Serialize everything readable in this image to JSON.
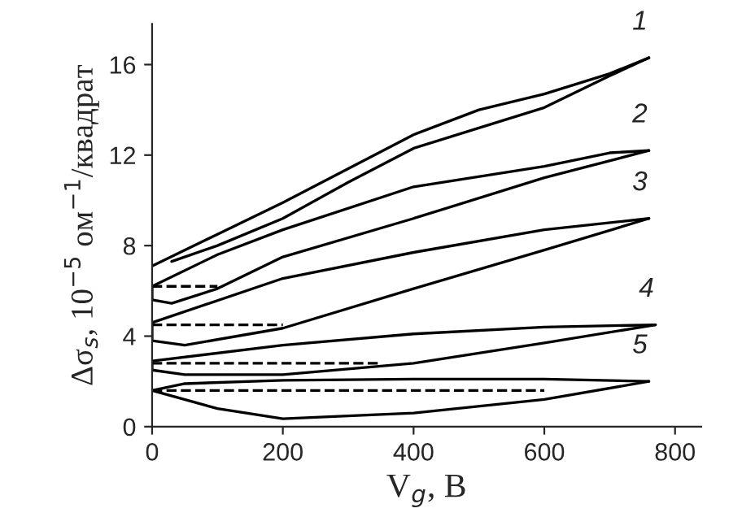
{
  "chart_data": {
    "type": "line",
    "xlabel": "V$_{g}$, В",
    "ylabel": "Δσ$_{s}$, 10$^{−5}$ ом$^{−1}$/квадрат",
    "xlim": [
      0,
      840
    ],
    "ylim": [
      0,
      17.8
    ],
    "xticks": [
      0,
      200,
      400,
      600,
      800
    ],
    "yticks": [
      0,
      4,
      8,
      12,
      16
    ],
    "grid": false,
    "legend": false,
    "marker": "none",
    "series": [
      {
        "color": "#000000",
        "line_style": "dashed",
        "x": [
          0,
          100
        ],
        "values": [
          6.2,
          6.2
        ]
      },
      {
        "color": "#000000",
        "line_style": "dashed",
        "x": [
          0,
          200
        ],
        "values": [
          4.5,
          4.5
        ]
      },
      {
        "color": "#000000",
        "line_style": "dashed",
        "x": [
          0,
          350
        ],
        "values": [
          2.8,
          2.8
        ]
      },
      {
        "color": "#000000",
        "line_style": "dashed",
        "x": [
          0,
          600
        ],
        "values": [
          1.6,
          1.6
        ]
      },
      {
        "name": "1",
        "color": "#000000",
        "line_style": "solid",
        "x": [
          0,
          100,
          200,
          300,
          400,
          500,
          600,
          700,
          760
        ],
        "values": [
          7.1,
          8.5,
          9.9,
          11.4,
          12.9,
          14.0,
          14.7,
          15.6,
          16.3
        ]
      },
      {
        "color": "#000000",
        "line_style": "solid",
        "x": [
          30,
          100,
          200,
          300,
          400,
          500,
          600,
          700,
          760
        ],
        "values": [
          7.3,
          8.0,
          9.2,
          10.8,
          12.3,
          13.2,
          14.1,
          15.5,
          16.3
        ]
      },
      {
        "name": "2",
        "color": "#000000",
        "line_style": "solid",
        "x": [
          0,
          100,
          200,
          400,
          600,
          700,
          760
        ],
        "values": [
          6.2,
          7.6,
          8.7,
          10.6,
          11.5,
          12.1,
          12.2
        ]
      },
      {
        "color": "#000000",
        "line_style": "solid",
        "x": [
          0,
          0,
          30,
          100,
          200,
          400,
          600,
          760
        ],
        "values": [
          6.2,
          5.6,
          5.45,
          6.1,
          7.5,
          9.2,
          11.0,
          12.2
        ]
      },
      {
        "name": "3",
        "color": "#000000",
        "line_style": "solid",
        "x": [
          0,
          200,
          400,
          600,
          760
        ],
        "values": [
          4.6,
          6.55,
          7.7,
          8.7,
          9.2
        ]
      },
      {
        "color": "#000000",
        "line_style": "solid",
        "x": [
          0,
          0,
          50,
          200,
          400,
          600,
          760
        ],
        "values": [
          4.6,
          3.8,
          3.6,
          4.35,
          6.1,
          7.8,
          9.2
        ]
      },
      {
        "name": "4",
        "color": "#000000",
        "line_style": "solid",
        "x": [
          0,
          200,
          400,
          600,
          770
        ],
        "values": [
          2.9,
          3.6,
          4.1,
          4.4,
          4.5
        ]
      },
      {
        "color": "#000000",
        "line_style": "solid",
        "x": [
          0,
          0,
          50,
          200,
          400,
          600,
          770
        ],
        "values": [
          2.9,
          2.5,
          2.3,
          2.3,
          2.8,
          3.7,
          4.5
        ]
      },
      {
        "name": "5",
        "color": "#000000",
        "line_style": "solid",
        "x": [
          0,
          50,
          200,
          400,
          600,
          760
        ],
        "values": [
          1.6,
          1.9,
          2.05,
          2.1,
          2.1,
          2.0
        ]
      },
      {
        "color": "#000000",
        "line_style": "solid",
        "x": [
          0,
          100,
          200,
          400,
          600,
          760
        ],
        "values": [
          1.6,
          0.8,
          0.35,
          0.6,
          1.2,
          2.0
        ]
      }
    ]
  }
}
